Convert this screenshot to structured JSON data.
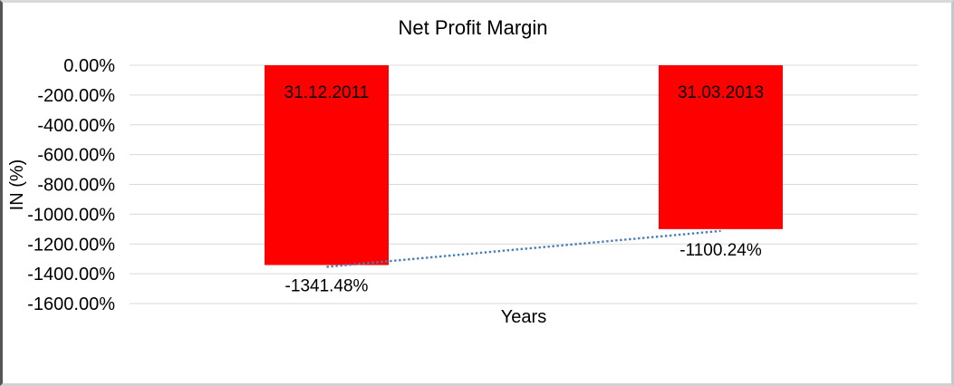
{
  "chart_data": {
    "type": "bar",
    "title": "Net Profit Margin",
    "xlabel": "Years",
    "ylabel": "IN (%)",
    "categories": [
      "31.12.2011",
      "31.03.2013"
    ],
    "values": [
      -1341.48,
      -1100.24
    ],
    "value_labels": [
      "-1341.48%",
      "-1100.24%"
    ],
    "ylim": [
      -1600,
      0
    ],
    "ytick_labels": [
      "0.00%",
      "-200.00%",
      "-400.00%",
      "-600.00%",
      "-800.00%",
      "-1000.00%",
      "-1200.00%",
      "-1400.00%",
      "-1600.00%"
    ],
    "grid": true,
    "legend": false,
    "bar_color": "#FF0000",
    "bar_label_color": "#000000",
    "gridline_color": "#D9D9D9",
    "trendline": {
      "type": "linear",
      "style": "dotted",
      "color": "#4A7EBB"
    }
  }
}
